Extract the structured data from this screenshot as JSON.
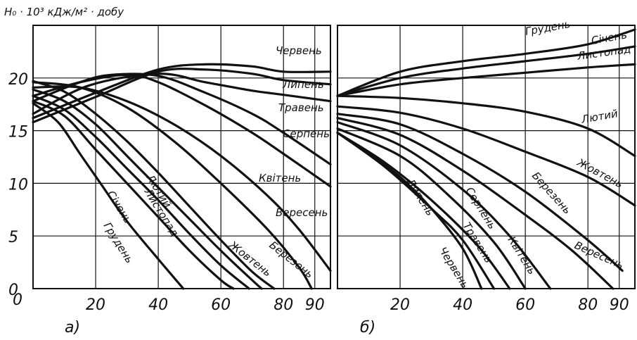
{
  "y_axis_title": "H₀ · 10³ кДж/м² · добу",
  "chart_data": [
    {
      "panel": "а)",
      "type": "line",
      "xlim": [
        0,
        95
      ],
      "ylim": [
        0,
        25
      ],
      "xticks": [
        "20",
        "40",
        "60",
        "80",
        "90"
      ],
      "xtick_values": [
        20,
        40,
        60,
        80,
        90
      ],
      "yticks": [
        "0",
        "5",
        "10",
        "15",
        "20"
      ],
      "ytick_values": [
        0,
        5,
        10,
        15,
        20
      ],
      "grid": true,
      "series": [
        {
          "name": "Червень",
          "x": [
            0,
            20,
            40,
            55,
            70,
            80,
            95
          ],
          "y": [
            16.2,
            18.6,
            20.8,
            21.3,
            21.1,
            20.6,
            20.6
          ]
        },
        {
          "name": "Липень",
          "x": [
            0,
            20,
            40,
            55,
            70,
            80,
            95
          ],
          "y": [
            15.8,
            18.2,
            20.6,
            20.8,
            20.4,
            19.8,
            19.4
          ]
        },
        {
          "name": "Травень",
          "x": [
            0,
            18,
            40,
            55,
            70,
            80,
            95
          ],
          "y": [
            16.6,
            19.3,
            20.4,
            19.6,
            18.8,
            18.4,
            17.8
          ]
        },
        {
          "name": "Серпень",
          "x": [
            0,
            15,
            25,
            40,
            55,
            70,
            80,
            95
          ],
          "y": [
            17.8,
            19.6,
            20.3,
            20.2,
            18.6,
            16.6,
            14.8,
            11.8
          ]
        },
        {
          "name": "Квітень",
          "x": [
            0,
            15,
            30,
            40,
            55,
            70,
            80,
            95
          ],
          "y": [
            18.3,
            19.6,
            20.3,
            19.6,
            17.4,
            14.8,
            12.8,
            9.7
          ]
        },
        {
          "name": "Вересень",
          "x": [
            0,
            15,
            30,
            45,
            60,
            75,
            85,
            95
          ],
          "y": [
            19.1,
            19.1,
            17.8,
            15.6,
            12.6,
            8.8,
            5.6,
            1.7
          ]
        },
        {
          "name": "Березень",
          "x": [
            0,
            15,
            30,
            45,
            60,
            75,
            85,
            89
          ],
          "y": [
            19.6,
            19.1,
            17.2,
            14.0,
            10.0,
            5.6,
            2.0,
            0
          ]
        },
        {
          "name": "Жовтень",
          "x": [
            0,
            10,
            20,
            30,
            40,
            50,
            60,
            70,
            77
          ],
          "y": [
            19.7,
            18.7,
            16.6,
            14.0,
            11.0,
            7.8,
            4.6,
            1.6,
            0
          ]
        },
        {
          "name": "Лютий",
          "x": [
            0,
            10,
            20,
            30,
            40,
            50,
            60,
            70,
            73
          ],
          "y": [
            18.9,
            17.8,
            15.6,
            12.6,
            9.6,
            6.6,
            3.6,
            0.8,
            0
          ]
        },
        {
          "name": "Листопад",
          "x": [
            0,
            10,
            20,
            30,
            40,
            50,
            60,
            69
          ],
          "y": [
            18.3,
            17.0,
            14.4,
            11.4,
            8.4,
            5.2,
            2.2,
            0
          ]
        },
        {
          "name": "Січень",
          "x": [
            0,
            10,
            20,
            30,
            40,
            50,
            60,
            64
          ],
          "y": [
            17.8,
            16.4,
            13.2,
            10.0,
            6.8,
            3.6,
            0.8,
            0
          ]
        },
        {
          "name": "Грудень",
          "x": [
            0,
            8,
            15,
            22,
            30,
            40,
            48
          ],
          "y": [
            17.6,
            15.8,
            12.8,
            9.8,
            6.4,
            2.8,
            0
          ]
        }
      ]
    },
    {
      "panel": "б)",
      "type": "line",
      "xlim": [
        0,
        95
      ],
      "ylim": [
        0,
        25
      ],
      "xticks": [
        "20",
        "40",
        "60",
        "80",
        "90"
      ],
      "xtick_values": [
        20,
        40,
        60,
        80,
        90
      ],
      "yticks": [],
      "grid": true,
      "series": [
        {
          "name": "Грудень",
          "x": [
            0,
            20,
            40,
            60,
            80,
            95
          ],
          "y": [
            18.3,
            20.6,
            21.6,
            22.3,
            23.2,
            24.6
          ]
        },
        {
          "name": "Січень",
          "x": [
            0,
            20,
            40,
            60,
            80,
            95
          ],
          "y": [
            18.3,
            20.0,
            20.9,
            21.6,
            22.3,
            23.0
          ]
        },
        {
          "name": "Листопад",
          "x": [
            0,
            20,
            40,
            60,
            80,
            95
          ],
          "y": [
            18.3,
            19.4,
            20.0,
            20.5,
            21.0,
            21.3
          ]
        },
        {
          "name": "Лютий",
          "x": [
            0,
            20,
            40,
            60,
            80,
            95
          ],
          "y": [
            18.3,
            18.1,
            17.6,
            16.8,
            15.2,
            12.6
          ]
        },
        {
          "name": "Жовтень",
          "x": [
            0,
            20,
            40,
            60,
            80,
            95
          ],
          "y": [
            17.3,
            16.7,
            15.2,
            13.0,
            10.6,
            7.9
          ]
        },
        {
          "name": "Березень",
          "x": [
            0,
            20,
            40,
            60,
            80,
            91
          ],
          "y": [
            16.6,
            15.6,
            12.8,
            9.2,
            4.6,
            1.7
          ]
        },
        {
          "name": "Вересень",
          "x": [
            0,
            20,
            40,
            60,
            75,
            88
          ],
          "y": [
            16.2,
            14.6,
            11.2,
            7.0,
            3.6,
            0
          ]
        },
        {
          "name": "Квітень",
          "x": [
            0,
            20,
            40,
            55,
            68
          ],
          "y": [
            15.8,
            13.6,
            9.4,
            5.0,
            0
          ]
        },
        {
          "name": "Травень",
          "x": [
            0,
            20,
            35,
            50,
            60
          ],
          "y": [
            15.2,
            12.6,
            9.0,
            4.4,
            0
          ]
        },
        {
          "name": "Серпень",
          "x": [
            0,
            15,
            30,
            45,
            55
          ],
          "y": [
            14.8,
            12.0,
            8.4,
            4.0,
            0
          ]
        },
        {
          "name": "Липень",
          "x": [
            0,
            15,
            30,
            40,
            50
          ],
          "y": [
            14.8,
            11.6,
            7.6,
            4.6,
            0
          ]
        },
        {
          "name": "Червень",
          "x": [
            0,
            10,
            20,
            30,
            40,
            46
          ],
          "y": [
            14.8,
            12.8,
            10.6,
            7.6,
            3.8,
            0
          ]
        }
      ]
    }
  ]
}
